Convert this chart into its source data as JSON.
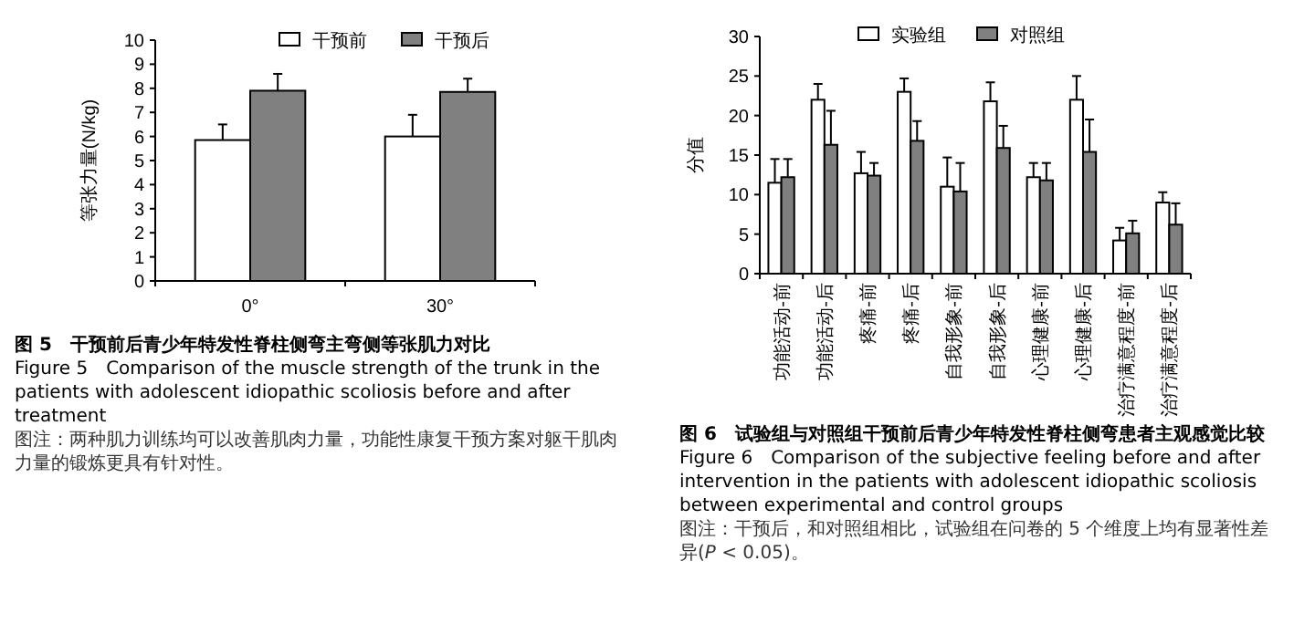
{
  "chart_data": [
    {
      "type": "bar",
      "title": "图 5　干预前后青少年特发性脊柱侧弯主弯侧等张肌力对比",
      "subtitle": "Figure 5　Comparison of the muscle strength of the trunk in the patients with adolescent idiopathic scoliosis before and after treatment",
      "annotations": [
        "图注：两种肌力训练均可以改善肌肉力量，功能性康复干预方案对躯干肌肉力量的锻炼更具有针对性。"
      ],
      "ylabel": "等张力量(N/kg)",
      "categories": [
        "0°",
        "30°"
      ],
      "series": [
        {
          "name": "干预前",
          "color": "#ffffff",
          "values": [
            5.85,
            6.0
          ],
          "errors": [
            [
              5.85,
              6.5
            ],
            [
              6.0,
              6.9
            ]
          ]
        },
        {
          "name": "干预后",
          "color": "#808080",
          "values": [
            7.9,
            7.85
          ],
          "errors": [
            [
              7.9,
              8.6
            ],
            [
              7.85,
              8.4
            ]
          ]
        }
      ],
      "ylim": [
        0,
        10
      ],
      "yticks": [
        0,
        1,
        2,
        3,
        4,
        5,
        6,
        7,
        8,
        9,
        10
      ],
      "legend": "top"
    },
    {
      "type": "bar",
      "title": "图 6　试验组与对照组干预前后青少年特发性脊柱侧弯患者主观感觉比较",
      "subtitle": "Figure 6　Comparison of the subjective feeling before and after intervention in the patients with adolescent idiopathic scoliosis between experimental and control groups",
      "annotations": [
        "图注：干预后，和对照组相比，试验组在问卷的 5 个维度上均有显著性差异(*P* < 0.05)。"
      ],
      "ylabel": "分值",
      "categories": [
        "功能活动-前",
        "功能活动-后",
        "疼痛-前",
        "疼痛-后",
        "自我形象-前",
        "自我形象-后",
        "心理健康-前",
        "心理健康-后",
        "治疗满意程度-前",
        "治疗满意程度-后"
      ],
      "series": [
        {
          "name": "实验组",
          "color": "#ffffff",
          "values": [
            11.5,
            22,
            12.7,
            23,
            11,
            21.8,
            12.2,
            22,
            4.2,
            9
          ],
          "errors": [
            [
              11.5,
              14.5
            ],
            [
              22,
              24
            ],
            [
              12.7,
              15.4
            ],
            [
              23,
              24.7
            ],
            [
              11,
              14.7
            ],
            [
              21.8,
              24.2
            ],
            [
              12.2,
              14
            ],
            [
              22,
              25
            ],
            [
              4.2,
              5.8
            ],
            [
              9,
              10.3
            ]
          ]
        },
        {
          "name": "对照组",
          "color": "#808080",
          "values": [
            12.2,
            16.3,
            12.4,
            16.8,
            10.4,
            15.9,
            11.8,
            15.4,
            5.1,
            6.2
          ],
          "errors": [
            [
              12.2,
              14.5
            ],
            [
              16.3,
              20.6
            ],
            [
              12.4,
              14
            ],
            [
              16.8,
              19.3
            ],
            [
              10.4,
              14
            ],
            [
              15.9,
              18.7
            ],
            [
              11.8,
              14
            ],
            [
              15.4,
              19.5
            ],
            [
              5.1,
              6.7
            ],
            [
              6.2,
              8.9
            ]
          ]
        }
      ],
      "ylim": [
        0,
        30
      ],
      "yticks": [
        0,
        5,
        10,
        15,
        20,
        25,
        30
      ],
      "legend": "top"
    }
  ]
}
